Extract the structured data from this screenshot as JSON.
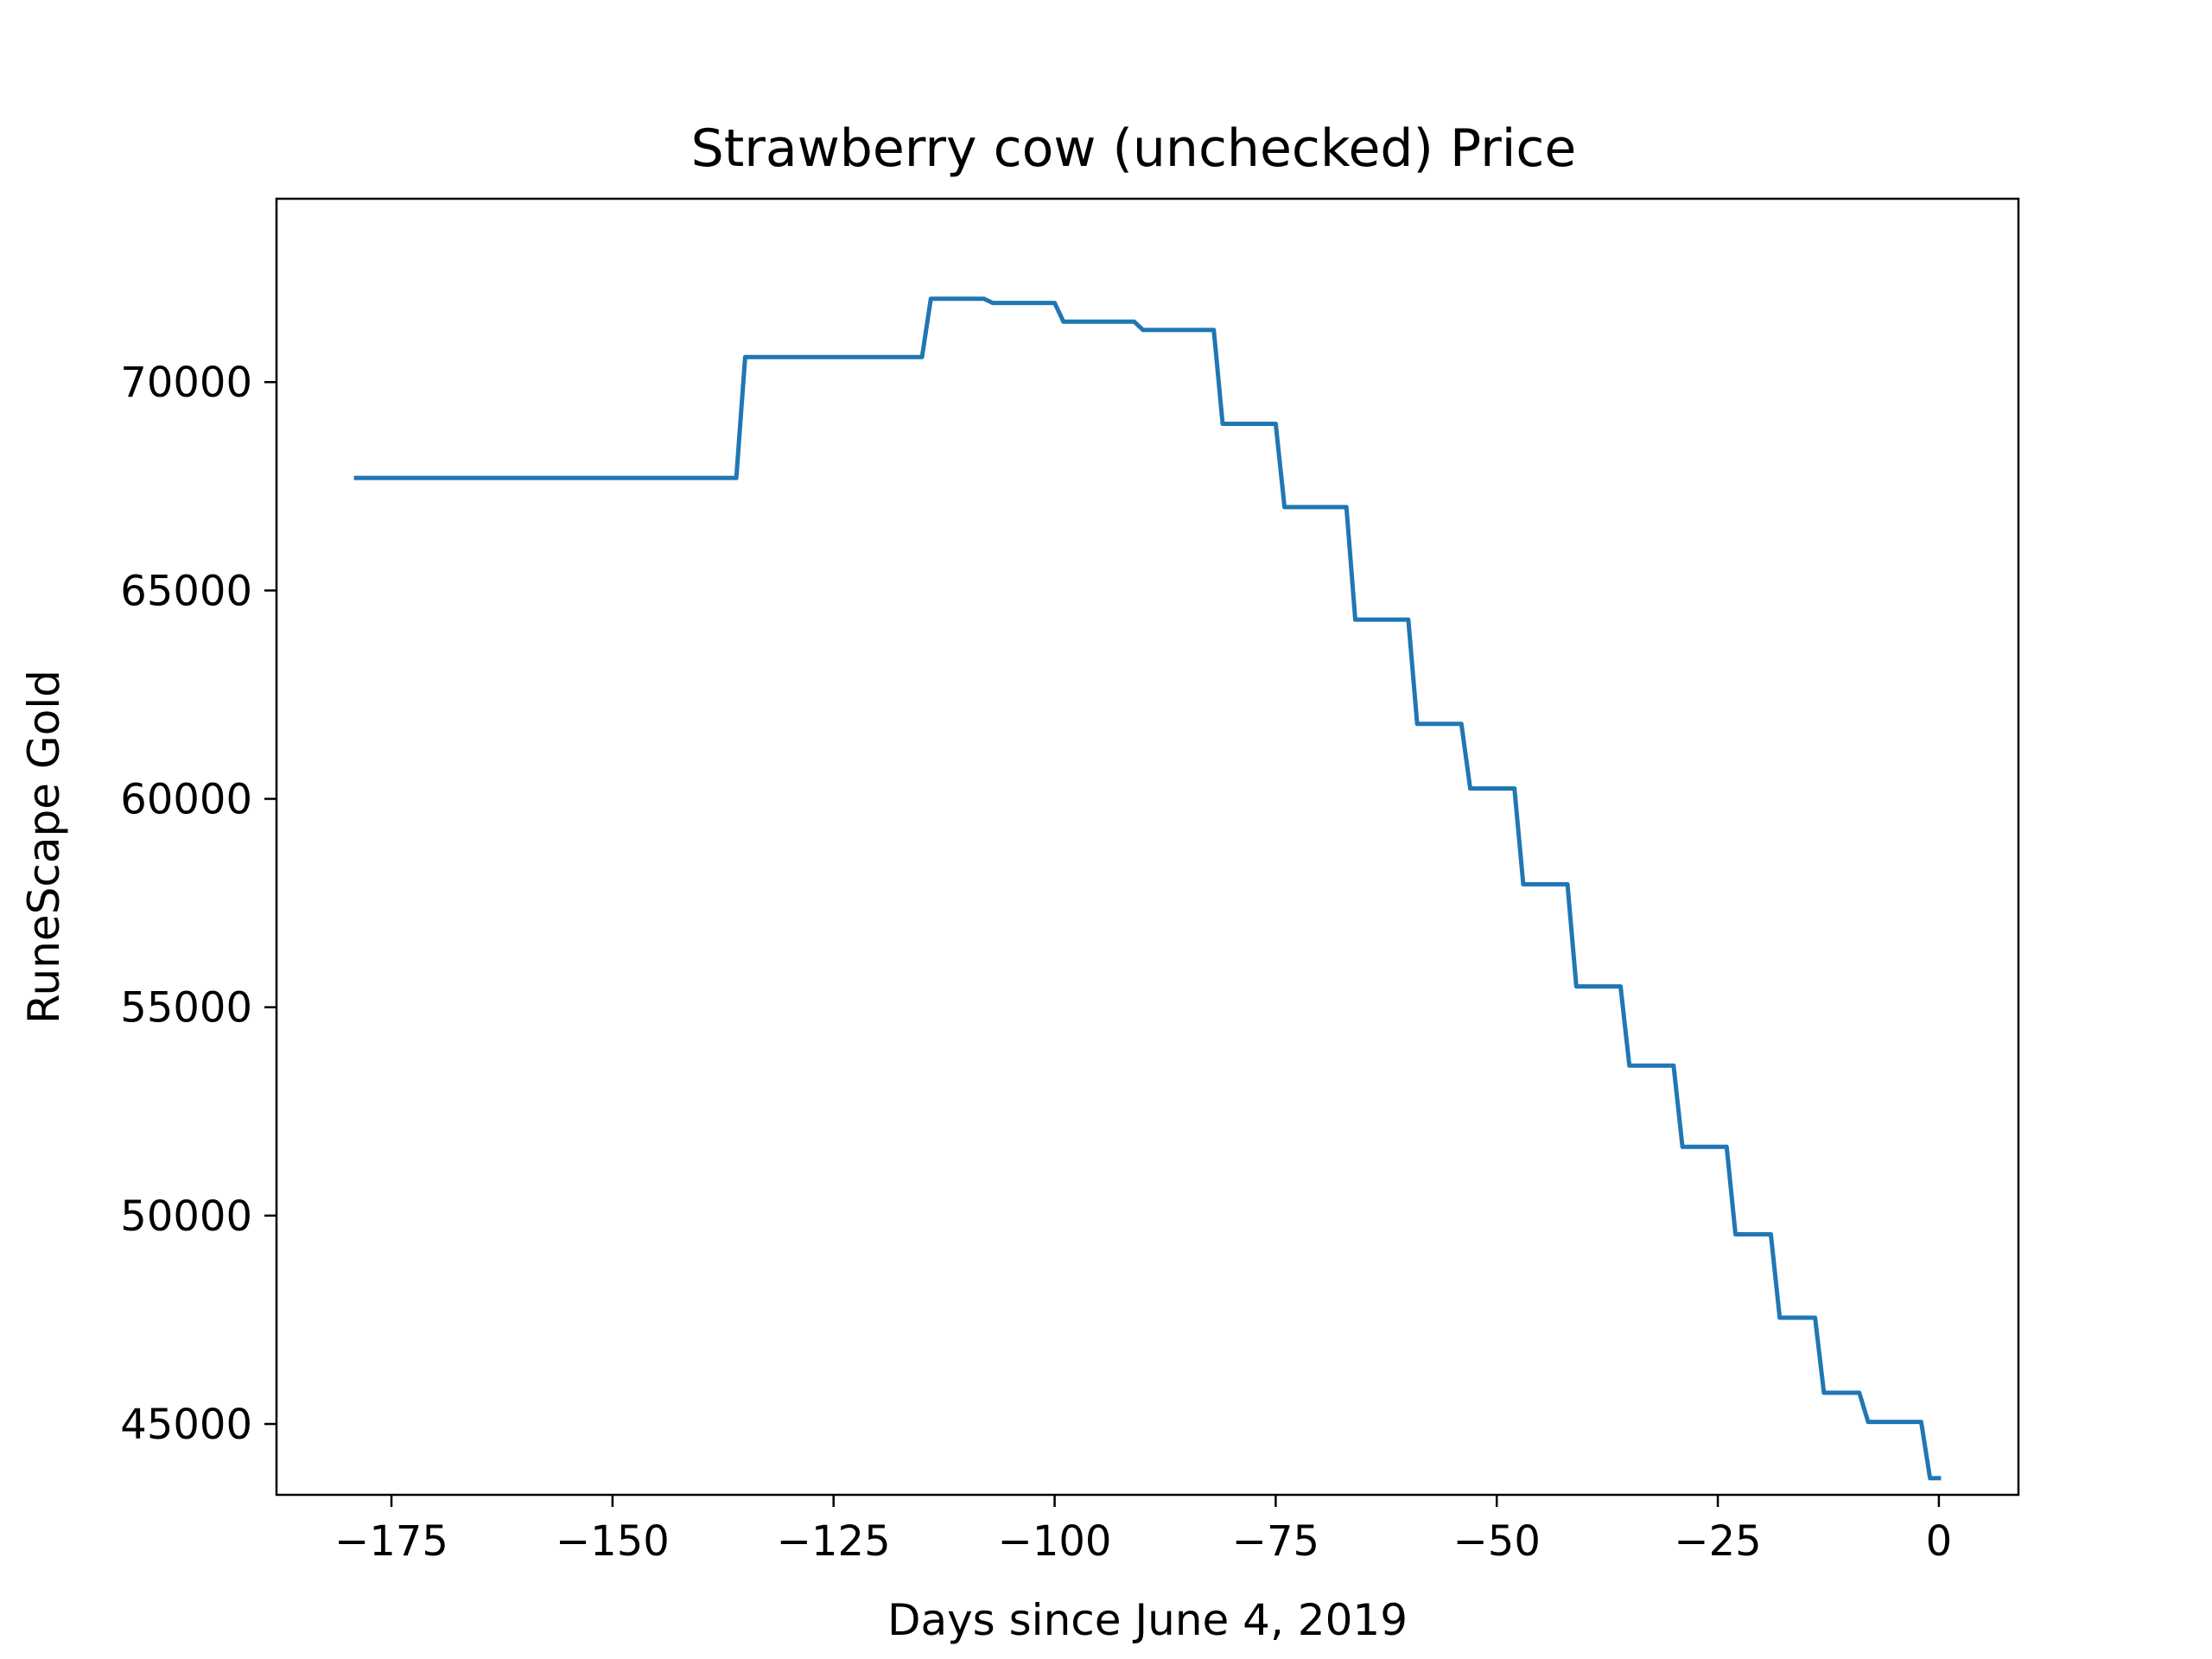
{
  "chart_data": {
    "type": "line",
    "title": "Strawberry cow (unchecked) Price",
    "xlabel": "Days since June 4, 2019",
    "ylabel": "RuneScape Gold",
    "xlim": [
      -188,
      9
    ],
    "ylim": [
      43300,
      74400
    ],
    "xticks": [
      -175,
      -150,
      -125,
      -100,
      -75,
      -50,
      -25,
      0
    ],
    "xtick_labels": [
      "−175",
      "−150",
      "−125",
      "−100",
      "−75",
      "−50",
      "−25",
      "0"
    ],
    "yticks": [
      45000,
      50000,
      55000,
      60000,
      65000,
      70000
    ],
    "ytick_labels": [
      "45000",
      "50000",
      "55000",
      "60000",
      "65000",
      "70000"
    ],
    "grid": false,
    "series_color": "#1f77b4",
    "series": [
      {
        "values": [
          [
            -179,
            67700
          ],
          [
            -136,
            67700
          ],
          [
            -135,
            70600
          ],
          [
            -115,
            70600
          ],
          [
            -114,
            72000
          ],
          [
            -108,
            72000
          ],
          [
            -107,
            71900
          ],
          [
            -100,
            71900
          ],
          [
            -99,
            71450
          ],
          [
            -91,
            71450
          ],
          [
            -90,
            71250
          ],
          [
            -82,
            71250
          ],
          [
            -81,
            69000
          ],
          [
            -75,
            69000
          ],
          [
            -74,
            67000
          ],
          [
            -67,
            67000
          ],
          [
            -66,
            64300
          ],
          [
            -60,
            64300
          ],
          [
            -59,
            61800
          ],
          [
            -54,
            61800
          ],
          [
            -53,
            60250
          ],
          [
            -48,
            60250
          ],
          [
            -47,
            57950
          ],
          [
            -42,
            57950
          ],
          [
            -41,
            55500
          ],
          [
            -36,
            55500
          ],
          [
            -35,
            53600
          ],
          [
            -30,
            53600
          ],
          [
            -29,
            51650
          ],
          [
            -24,
            51650
          ],
          [
            -23,
            49550
          ],
          [
            -19,
            49550
          ],
          [
            -18,
            47550
          ],
          [
            -14,
            47550
          ],
          [
            -13,
            45750
          ],
          [
            -9,
            45750
          ],
          [
            -8,
            45050
          ],
          [
            -2,
            45050
          ],
          [
            -1,
            43700
          ],
          [
            0,
            43700
          ]
        ]
      }
    ]
  }
}
